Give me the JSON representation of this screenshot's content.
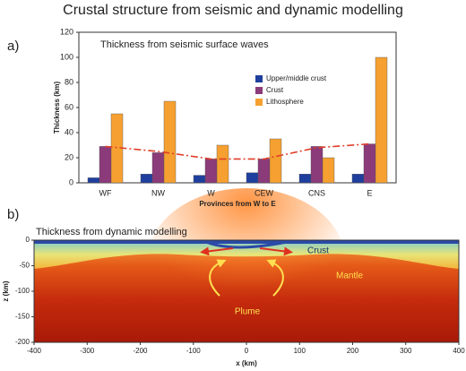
{
  "title": "Crustal structure from seismic and dynamic modelling",
  "chart_data": [
    {
      "type": "bar",
      "panel": "a)",
      "title": "Thickness from seismic surface waves",
      "ylabel": "Thickness (km)",
      "xlabel": "Provinces from W to E",
      "categories": [
        "WF",
        "NW",
        "W",
        "CEW",
        "CNS",
        "E"
      ],
      "series": [
        {
          "name": "Upper/middle crust",
          "color": "#1f3f9e",
          "values": [
            4,
            7,
            6,
            8,
            7,
            7
          ]
        },
        {
          "name": "Crust",
          "color": "#8b3a7a",
          "values": [
            29,
            24,
            19,
            19,
            29,
            31
          ]
        },
        {
          "name": "Lithosphere",
          "color": "#f5a030",
          "values": [
            55,
            65,
            30,
            35,
            20,
            100
          ]
        },
        {
          "color": "#e0402a",
          "values": [
            29,
            25,
            19,
            19,
            28,
            31
          ]
        }
      ],
      "ylim": [
        0,
        120
      ],
      "yticks": [
        0,
        20,
        40,
        60,
        80,
        100,
        120
      ],
      "legend": "upper right"
    },
    {
      "type": "image",
      "panel": "b)",
      "title": "Thickness from dynamic modelling",
      "xlabel": "x (km)",
      "ylabel": "z (km)",
      "xlim": [
        -400,
        400
      ],
      "xticks": [
        -400,
        -300,
        -200,
        -100,
        0,
        100,
        200,
        300,
        400
      ],
      "ylim": [
        -200,
        0
      ],
      "yticks": [
        0,
        -50,
        -100,
        -150,
        -200
      ],
      "annotations": [
        "Crust",
        "Mantle",
        "Plume"
      ]
    }
  ]
}
